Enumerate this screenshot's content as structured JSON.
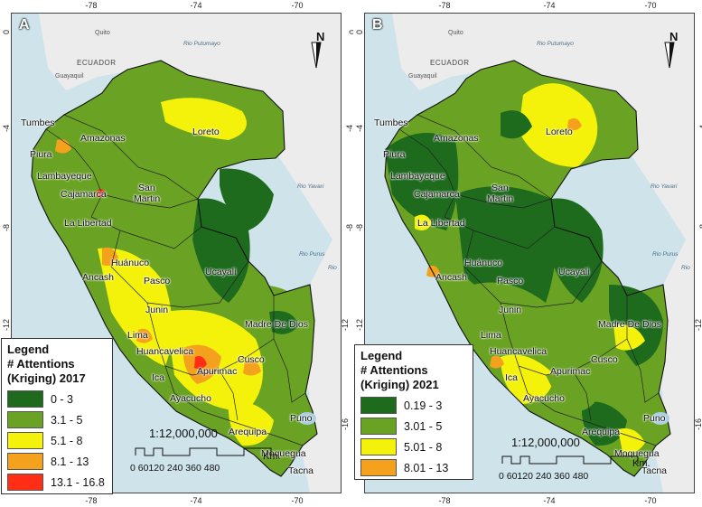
{
  "colors": {
    "class1": "#1e6b1e",
    "class2": "#6aa323",
    "class3": "#f4f20a",
    "class4": "#f4a11e",
    "class5": "#ff2e14",
    "ocean": "#cfe3ea",
    "neighbor": "#ececec",
    "lake": "#a9cfe3"
  },
  "axis": {
    "longitude_ticks": [
      "-78",
      "-74",
      "-70"
    ],
    "latitude_ticks": [
      "0",
      "-4",
      "-8",
      "-12",
      "-16"
    ]
  },
  "shared_labels": {
    "north": "N",
    "scale_ratio": "1:12,000,000",
    "scale_unit": "Km.",
    "scale_numbers": "0 60120   240   360   480",
    "countries": {
      "ecuador": "ECUADOR"
    },
    "cities": {
      "quito": "Quito",
      "guayaquil": "Guayaquil"
    },
    "rivers": {
      "putumayo": "Rio Putumayo",
      "yavari": "Rio Yavari",
      "purus": "Rio Purus",
      "rio": "Rio"
    }
  },
  "regions": {
    "tumbes": "Tumbes",
    "piura": "Piura",
    "amazonas": "Amazonas",
    "loreto": "Loreto",
    "lambayeque": "Lambayeque",
    "cajamarca": "Cajamarca",
    "san": "San",
    "martin": "Martin",
    "la_libertad": "La Libertad",
    "huanuco": "Huánuco",
    "ancash": "Ancash",
    "pasco": "Pasco",
    "ucayali": "Ucayali",
    "junin": "Junin",
    "lima": "Lima",
    "madre_de_dios": "Madre De Dios",
    "huancavelica": "Huancavelica",
    "cusco": "Cusco",
    "ica": "Ica",
    "apurimac": "Apurimac",
    "ayacucho": "Ayacucho",
    "puno": "Puno",
    "arequipa": "Arequipa",
    "moquegua": "Moquegua",
    "tacna": "Tacna"
  },
  "panel_a": {
    "letter": "A",
    "legend": {
      "title1": "Legend",
      "title2": "# Attentions",
      "title3": "(Kriging) 2017",
      "classes": [
        "0 - 3",
        "3.1 - 5",
        "5.1 - 8",
        "8.1 - 13",
        "13.1 - 16.8"
      ]
    }
  },
  "panel_b": {
    "letter": "B",
    "legend": {
      "title1": "Legend",
      "title2": "# Attentions",
      "title3": "(Kriging) 2021",
      "classes": [
        "0.19 - 3",
        "3.01 - 5",
        "5.01 - 8",
        "8.01 - 13"
      ]
    }
  }
}
